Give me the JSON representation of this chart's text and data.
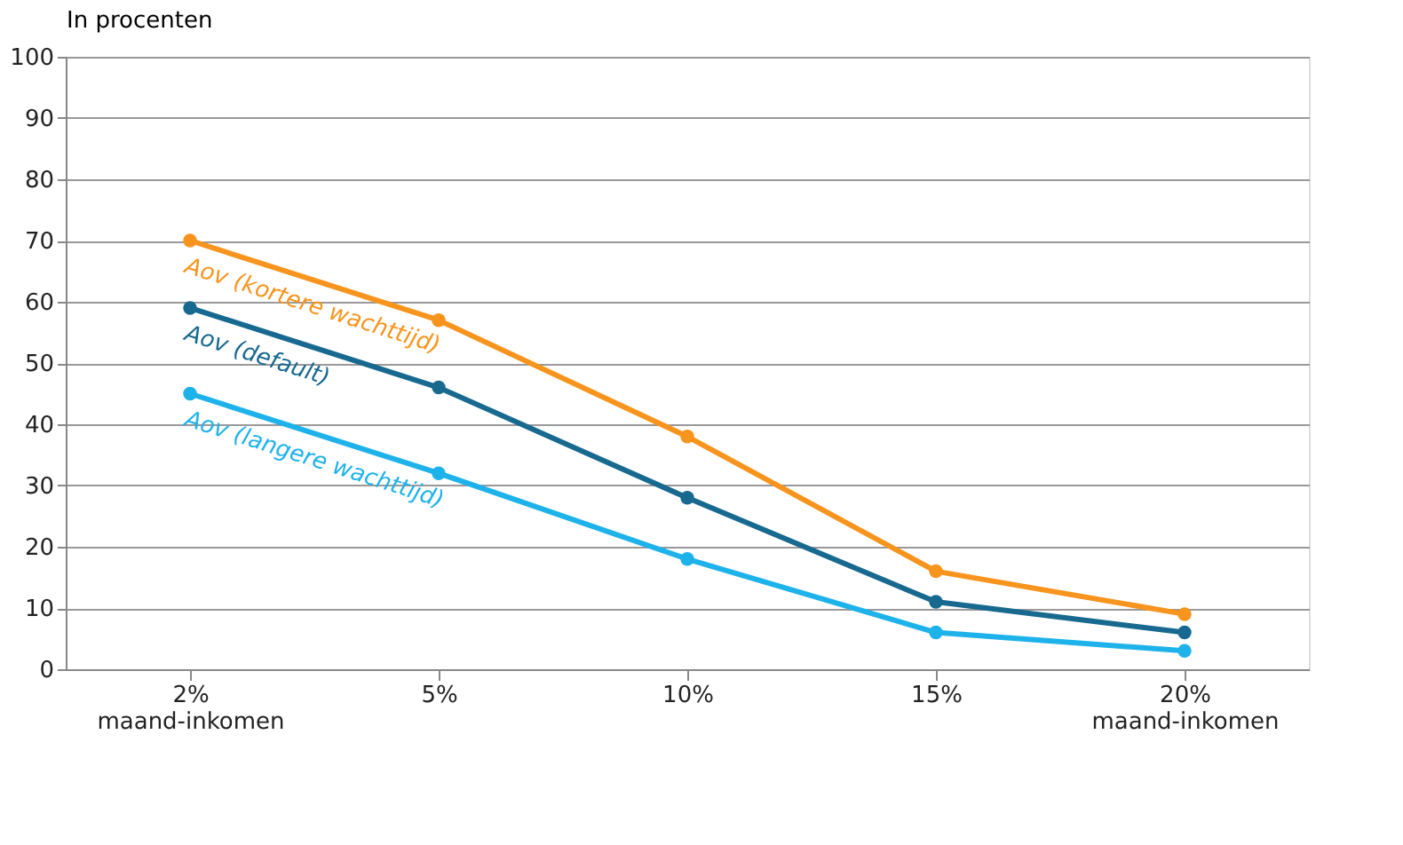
{
  "chart_data": {
    "type": "line",
    "ylabel": "In procenten",
    "categories": [
      "2%\nmaand-inkomen",
      "5%",
      "10%",
      "15%",
      "20%\nmaand-inkomen"
    ],
    "series": [
      {
        "name": "Aov (kortere wachttijd)",
        "color": "#f7941d",
        "values": [
          70,
          57,
          38,
          16,
          9
        ]
      },
      {
        "name": "Aov (default)",
        "color": "#17698f",
        "values": [
          59,
          46,
          28,
          11,
          6
        ]
      },
      {
        "name": "Aov (langere wachttijd)",
        "color": "#1eb2ea",
        "values": [
          45,
          32,
          18,
          6,
          3
        ]
      }
    ],
    "ylim": [
      0,
      100
    ],
    "yticks": [
      0,
      10,
      20,
      30,
      40,
      50,
      60,
      70,
      80,
      90,
      100
    ],
    "grid": "y",
    "marker": "circle",
    "line_style": "solid"
  }
}
